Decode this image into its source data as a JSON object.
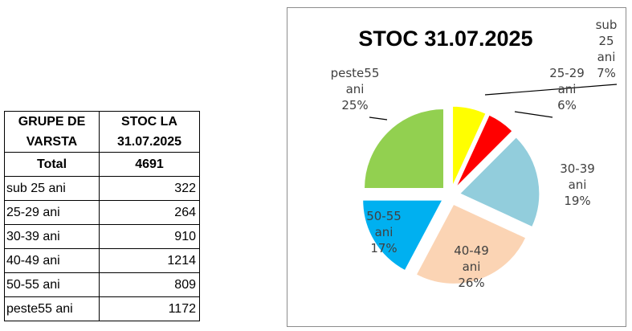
{
  "table": {
    "header_col1_line1": "GRUPE DE",
    "header_col1_line2": "VARSTA",
    "header_col2_line1": "STOC LA",
    "header_col2_line2": "31.07.2025",
    "total_label": "Total",
    "total_value": "4691",
    "rows": [
      {
        "label": "sub 25 ani",
        "value": "322"
      },
      {
        "label": "25-29 ani",
        "value": "264"
      },
      {
        "label": "30-39 ani",
        "value": "910"
      },
      {
        "label": "40-49 ani",
        "value": "1214"
      },
      {
        "label": "50-55 ani",
        "value": "809"
      },
      {
        "label": "peste55 ani",
        "value": "1172"
      }
    ]
  },
  "chart_data": {
    "type": "pie",
    "title": "STOC 31.07.2025",
    "exploded": true,
    "slices": [
      {
        "name": "sub 25 ani",
        "value": 322,
        "percent_label": "7%",
        "label_lines": [
          "sub",
          "25",
          "ani",
          "7%"
        ],
        "color": "#ffff00"
      },
      {
        "name": "25-29 ani",
        "value": 264,
        "percent_label": "6%",
        "label_lines": [
          "25-29",
          "ani",
          "6%"
        ],
        "color": "#ff0000"
      },
      {
        "name": "30-39 ani",
        "value": 910,
        "percent_label": "19%",
        "label_lines": [
          "30-39",
          "ani",
          "19%"
        ],
        "color": "#92cddc"
      },
      {
        "name": "40-49 ani",
        "value": 1214,
        "percent_label": "26%",
        "label_lines": [
          "40-49",
          "ani",
          "26%"
        ],
        "color": "#fbd4b4"
      },
      {
        "name": "50-55 ani",
        "value": 809,
        "percent_label": "17%",
        "label_lines": [
          "50-55",
          "ani",
          "17%"
        ],
        "color": "#00b0f0"
      },
      {
        "name": "peste55 ani",
        "value": 1172,
        "percent_label": "25%",
        "label_lines": [
          "peste55",
          "ani",
          "25%"
        ],
        "color": "#92d050"
      }
    ]
  }
}
